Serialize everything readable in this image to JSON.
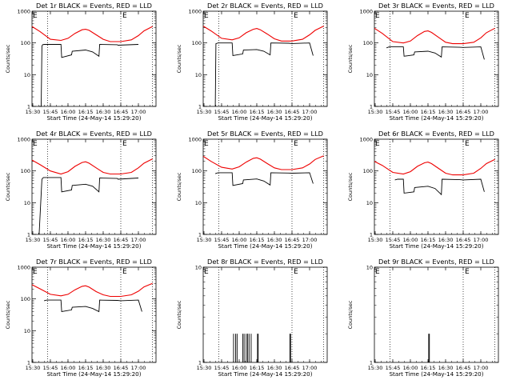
{
  "common": {
    "xlabel": "Start Time (24-May-14 15:29:20)",
    "ylabel": "Counts/sec",
    "xtick_labels": [
      "15:30",
      "15:45",
      "16:00",
      "16:15",
      "16:30",
      "16:45",
      "17:00"
    ],
    "xtick_values": [
      15.5,
      15.75,
      16.0,
      16.25,
      16.5,
      16.75,
      17.0
    ],
    "xlim": [
      15.4889,
      17.25
    ],
    "marker_label": "E",
    "markers_x": [
      15.71,
      16.75
    ],
    "end_line_x": 17.2,
    "colors": {
      "events": "#000000",
      "lld": "#ee0000"
    }
  },
  "chart_data": [
    {
      "title": "Det 1r BLACK = Events, RED = LLD",
      "type": "line",
      "yscale": "log",
      "ylim": [
        1,
        1000
      ],
      "ytick_labels": [
        "1",
        "10",
        "100",
        "1000"
      ],
      "series": [
        {
          "name": "LLD",
          "color": "#ee0000",
          "x": [
            15.489,
            15.6,
            15.75,
            15.9,
            16.0,
            16.1,
            16.2,
            16.25,
            16.3,
            16.4,
            16.5,
            16.6,
            16.75,
            16.9,
            17.0,
            17.08,
            17.2
          ],
          "y": [
            330,
            230,
            130,
            120,
            140,
            200,
            260,
            270,
            250,
            180,
            130,
            110,
            110,
            125,
            170,
            240,
            330
          ]
        },
        {
          "name": "Events",
          "color": "#000000",
          "x": [
            15.59,
            15.62,
            15.63,
            15.64,
            15.66,
            15.9,
            15.91,
            16.05,
            16.06,
            16.25,
            16.35,
            16.44,
            16.45,
            16.7,
            16.71,
            17.0
          ],
          "y": [
            1,
            1,
            80,
            88,
            90,
            90,
            35,
            42,
            55,
            60,
            52,
            38,
            90,
            88,
            85,
            90
          ]
        }
      ]
    },
    {
      "title": "Det 2r BLACK = Events, RED = LLD",
      "type": "line",
      "yscale": "log",
      "ylim": [
        1,
        1000
      ],
      "ytick_labels": [
        "1",
        "10",
        "100",
        "1000"
      ],
      "series": [
        {
          "name": "LLD",
          "color": "#ee0000",
          "x": [
            15.489,
            15.6,
            15.75,
            15.9,
            16.0,
            16.1,
            16.2,
            16.25,
            16.3,
            16.4,
            16.5,
            16.6,
            16.75,
            16.9,
            17.0,
            17.08,
            17.2
          ],
          "y": [
            340,
            240,
            140,
            125,
            145,
            210,
            270,
            285,
            260,
            190,
            135,
            115,
            115,
            130,
            180,
            250,
            340
          ]
        },
        {
          "name": "Events",
          "color": "#000000",
          "x": [
            15.66,
            15.67,
            15.7,
            15.9,
            15.91,
            16.05,
            16.06,
            16.25,
            16.35,
            16.44,
            16.45,
            16.7,
            16.75,
            17.0,
            17.05
          ],
          "y": [
            1,
            95,
            100,
            100,
            40,
            45,
            60,
            62,
            55,
            42,
            100,
            98,
            96,
            100,
            40
          ]
        }
      ]
    },
    {
      "title": "Det 3r BLACK = Events, RED = LLD",
      "type": "line",
      "yscale": "log",
      "ylim": [
        1,
        1000
      ],
      "ytick_labels": [
        "1",
        "10",
        "100",
        "1000"
      ],
      "series": [
        {
          "name": "LLD",
          "color": "#ee0000",
          "x": [
            15.489,
            15.6,
            15.75,
            15.9,
            16.0,
            16.1,
            16.2,
            16.25,
            16.3,
            16.4,
            16.5,
            16.6,
            16.75,
            16.9,
            17.0,
            17.08,
            17.2
          ],
          "y": [
            290,
            200,
            110,
            100,
            115,
            170,
            230,
            240,
            215,
            150,
            105,
            95,
            95,
            105,
            145,
            210,
            290
          ]
        },
        {
          "name": "Events",
          "color": "#000000",
          "x": [
            15.66,
            15.7,
            15.9,
            15.91,
            16.05,
            16.06,
            16.25,
            16.35,
            16.44,
            16.45,
            16.7,
            16.75,
            17.0,
            17.05
          ],
          "y": [
            70,
            75,
            75,
            38,
            42,
            52,
            55,
            48,
            36,
            75,
            73,
            72,
            75,
            30
          ]
        }
      ]
    },
    {
      "title": "Det 4r BLACK = Events, RED = LLD",
      "type": "line",
      "yscale": "log",
      "ylim": [
        1,
        1000
      ],
      "ytick_labels": [
        "1",
        "10",
        "100",
        "1000"
      ],
      "series": [
        {
          "name": "LLD",
          "color": "#ee0000",
          "x": [
            15.489,
            15.6,
            15.75,
            15.9,
            16.0,
            16.1,
            16.2,
            16.25,
            16.3,
            16.4,
            16.5,
            16.6,
            16.75,
            16.9,
            17.0,
            17.08,
            17.2
          ],
          "y": [
            220,
            160,
            100,
            80,
            95,
            140,
            185,
            195,
            175,
            125,
            90,
            80,
            80,
            90,
            125,
            175,
            240
          ]
        },
        {
          "name": "Events",
          "color": "#000000",
          "x": [
            15.59,
            15.63,
            15.65,
            15.9,
            15.91,
            16.05,
            16.06,
            16.25,
            16.35,
            16.44,
            16.45,
            16.7,
            16.71,
            17.0
          ],
          "y": [
            1,
            55,
            62,
            62,
            22,
            25,
            35,
            38,
            33,
            22,
            60,
            58,
            55,
            60
          ]
        }
      ]
    },
    {
      "title": "Det 5r BLACK = Events, RED = LLD",
      "type": "line",
      "yscale": "log",
      "ylim": [
        1,
        1000
      ],
      "ytick_labels": [
        "1",
        "10",
        "100",
        "1000"
      ],
      "series": [
        {
          "name": "LLD",
          "color": "#ee0000",
          "x": [
            15.489,
            15.6,
            15.75,
            15.9,
            16.0,
            16.1,
            16.2,
            16.25,
            16.3,
            16.4,
            16.5,
            16.6,
            16.75,
            16.9,
            17.0,
            17.08,
            17.2
          ],
          "y": [
            290,
            200,
            130,
            115,
            135,
            190,
            250,
            260,
            235,
            170,
            125,
            110,
            110,
            125,
            165,
            230,
            300
          ]
        },
        {
          "name": "Events",
          "color": "#000000",
          "x": [
            15.66,
            15.7,
            15.9,
            15.91,
            16.05,
            16.06,
            16.25,
            16.35,
            16.44,
            16.45,
            16.7,
            16.75,
            17.0,
            17.05
          ],
          "y": [
            82,
            88,
            88,
            35,
            40,
            52,
            56,
            48,
            36,
            88,
            86,
            85,
            88,
            40
          ]
        }
      ]
    },
    {
      "title": "Det 6r BLACK = Events, RED = LLD",
      "type": "line",
      "yscale": "log",
      "ylim": [
        1,
        1000
      ],
      "ytick_labels": [
        "1",
        "10",
        "100",
        "1000"
      ],
      "series": [
        {
          "name": "LLD",
          "color": "#ee0000",
          "x": [
            15.489,
            15.6,
            15.75,
            15.9,
            16.0,
            16.1,
            16.2,
            16.25,
            16.3,
            16.4,
            16.5,
            16.6,
            16.75,
            16.9,
            17.0,
            17.08,
            17.2
          ],
          "y": [
            200,
            150,
            90,
            80,
            95,
            140,
            180,
            190,
            170,
            120,
            85,
            75,
            75,
            85,
            120,
            170,
            230
          ]
        },
        {
          "name": "Events",
          "color": "#000000",
          "x": [
            15.78,
            15.82,
            15.9,
            15.91,
            16.05,
            16.06,
            16.25,
            16.35,
            16.44,
            16.45,
            16.7,
            16.75,
            17.0,
            17.05
          ],
          "y": [
            52,
            55,
            55,
            20,
            22,
            30,
            33,
            28,
            18,
            55,
            53,
            52,
            55,
            22
          ]
        }
      ]
    },
    {
      "title": "Det 7r BLACK = Events, RED = LLD",
      "type": "line",
      "yscale": "log",
      "ylim": [
        1,
        1000
      ],
      "ytick_labels": [
        "1",
        "10",
        "100",
        "1000"
      ],
      "series": [
        {
          "name": "LLD",
          "color": "#ee0000",
          "x": [
            15.489,
            15.6,
            15.75,
            15.9,
            16.0,
            16.1,
            16.2,
            16.25,
            16.3,
            16.4,
            16.5,
            16.6,
            16.75,
            16.9,
            17.0,
            17.08,
            17.2
          ],
          "y": [
            280,
            210,
            140,
            125,
            140,
            195,
            250,
            260,
            235,
            170,
            135,
            120,
            120,
            135,
            175,
            240,
            310
          ]
        },
        {
          "name": "Events",
          "color": "#000000",
          "x": [
            15.66,
            15.7,
            15.9,
            15.91,
            16.05,
            16.06,
            16.25,
            16.35,
            16.44,
            16.45,
            16.7,
            16.75,
            17.0,
            17.05
          ],
          "y": [
            88,
            92,
            92,
            40,
            45,
            55,
            58,
            50,
            40,
            92,
            90,
            88,
            92,
            40
          ]
        }
      ]
    },
    {
      "title": "Det 8r BLACK = Events, RED = LLD",
      "type": "line",
      "yscale": "log",
      "ylim": [
        1,
        10
      ],
      "ytick_labels": [
        "1",
        "10"
      ],
      "series": [
        {
          "name": "LLD",
          "color": "#ee0000",
          "x": [],
          "y": []
        },
        {
          "name": "Events",
          "color": "#000000",
          "spikes": true,
          "x": [
            15.92,
            15.95,
            15.97,
            16.05,
            16.07,
            16.1,
            16.12,
            16.14,
            16.17,
            16.26,
            16.27,
            16.72,
            16.73
          ],
          "y": [
            2,
            2,
            2,
            2,
            2,
            2,
            2,
            2,
            2,
            2,
            2,
            2,
            2
          ]
        }
      ]
    },
    {
      "title": "Det 9r BLACK = Events, RED = LLD",
      "type": "line",
      "yscale": "log",
      "ylim": [
        1,
        10
      ],
      "ytick_labels": [
        "1",
        "10"
      ],
      "series": [
        {
          "name": "LLD",
          "color": "#ee0000",
          "x": [],
          "y": []
        },
        {
          "name": "Events",
          "color": "#000000",
          "spikes": true,
          "x": [
            16.26,
            16.27
          ],
          "y": [
            2,
            2
          ]
        }
      ]
    }
  ]
}
